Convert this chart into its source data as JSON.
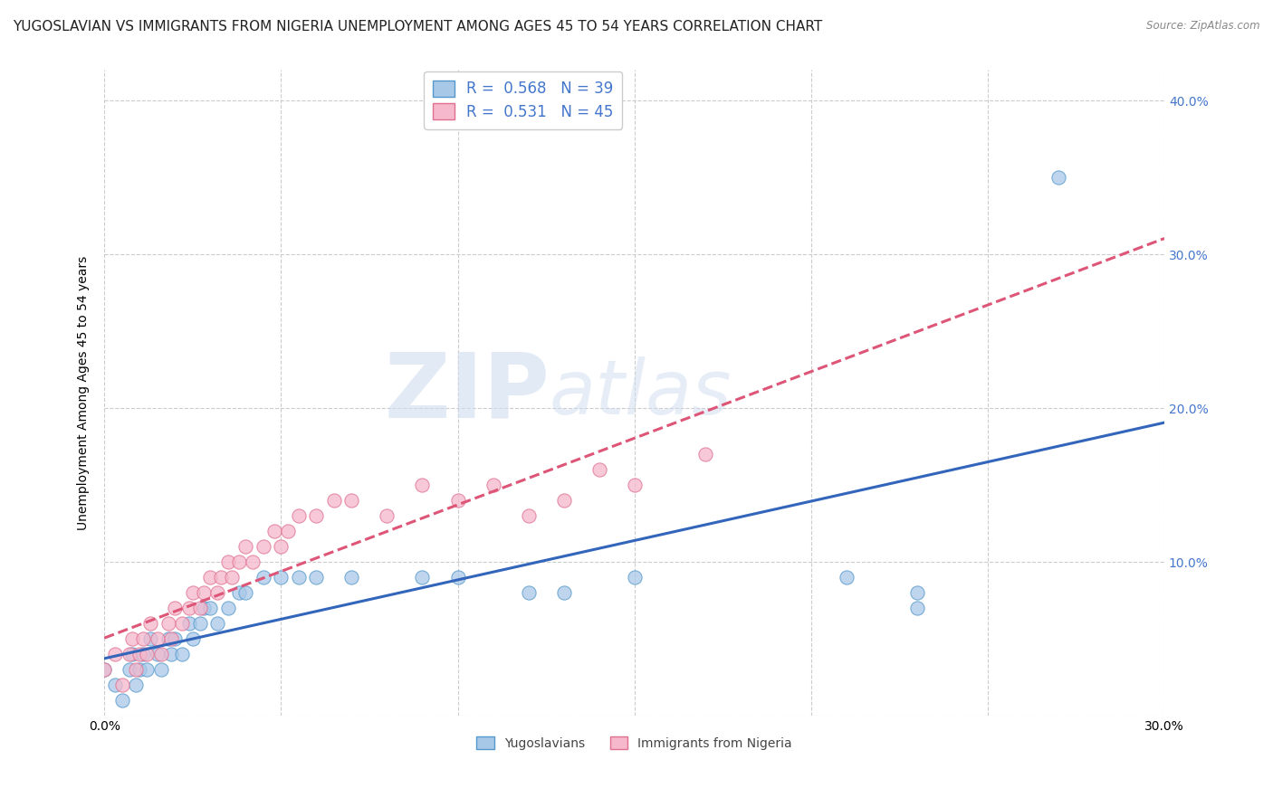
{
  "title": "YUGOSLAVIAN VS IMMIGRANTS FROM NIGERIA UNEMPLOYMENT AMONG AGES 45 TO 54 YEARS CORRELATION CHART",
  "source": "Source: ZipAtlas.com",
  "ylabel": "Unemployment Among Ages 45 to 54 years",
  "xlim": [
    0.0,
    0.3
  ],
  "ylim": [
    0.0,
    0.42
  ],
  "xticks": [
    0.0,
    0.05,
    0.1,
    0.15,
    0.2,
    0.25,
    0.3
  ],
  "yticks": [
    0.0,
    0.1,
    0.2,
    0.3,
    0.4
  ],
  "series": [
    {
      "name": "Yugoslavians",
      "R": 0.568,
      "N": 39,
      "scatter_color": "#a8c8e8",
      "edge_color": "#5599cc",
      "line_color": "#3366bb",
      "line_style": "solid",
      "x": [
        0.0,
        0.003,
        0.005,
        0.007,
        0.008,
        0.009,
        0.01,
        0.011,
        0.012,
        0.013,
        0.015,
        0.016,
        0.018,
        0.019,
        0.02,
        0.022,
        0.024,
        0.025,
        0.027,
        0.028,
        0.03,
        0.032,
        0.035,
        0.038,
        0.04,
        0.045,
        0.05,
        0.055,
        0.06,
        0.07,
        0.09,
        0.1,
        0.12,
        0.13,
        0.15,
        0.21,
        0.23,
        0.23,
        0.27
      ],
      "y": [
        0.03,
        0.02,
        0.01,
        0.03,
        0.04,
        0.02,
        0.03,
        0.04,
        0.03,
        0.05,
        0.04,
        0.03,
        0.05,
        0.04,
        0.05,
        0.04,
        0.06,
        0.05,
        0.06,
        0.07,
        0.07,
        0.06,
        0.07,
        0.08,
        0.08,
        0.09,
        0.09,
        0.09,
        0.09,
        0.09,
        0.09,
        0.09,
        0.08,
        0.08,
        0.09,
        0.09,
        0.07,
        0.08,
        0.35
      ]
    },
    {
      "name": "Immigrants from Nigeria",
      "R": 0.531,
      "N": 45,
      "scatter_color": "#f5b8cc",
      "edge_color": "#e07090",
      "line_color": "#dd5577",
      "line_style": "dashed",
      "x": [
        0.0,
        0.003,
        0.005,
        0.007,
        0.008,
        0.009,
        0.01,
        0.011,
        0.012,
        0.013,
        0.015,
        0.016,
        0.018,
        0.019,
        0.02,
        0.022,
        0.024,
        0.025,
        0.027,
        0.028,
        0.03,
        0.032,
        0.033,
        0.035,
        0.036,
        0.038,
        0.04,
        0.042,
        0.045,
        0.048,
        0.05,
        0.052,
        0.055,
        0.06,
        0.065,
        0.07,
        0.08,
        0.09,
        0.1,
        0.11,
        0.12,
        0.13,
        0.14,
        0.15,
        0.17
      ],
      "y": [
        0.03,
        0.04,
        0.02,
        0.04,
        0.05,
        0.03,
        0.04,
        0.05,
        0.04,
        0.06,
        0.05,
        0.04,
        0.06,
        0.05,
        0.07,
        0.06,
        0.07,
        0.08,
        0.07,
        0.08,
        0.09,
        0.08,
        0.09,
        0.1,
        0.09,
        0.1,
        0.11,
        0.1,
        0.11,
        0.12,
        0.11,
        0.12,
        0.13,
        0.13,
        0.14,
        0.14,
        0.13,
        0.15,
        0.14,
        0.15,
        0.13,
        0.14,
        0.16,
        0.15,
        0.17
      ]
    }
  ],
  "background_color": "#ffffff",
  "grid_color": "#cccccc",
  "title_fontsize": 11,
  "axis_label_fontsize": 10,
  "tick_fontsize": 10,
  "legend_fontsize": 12,
  "right_tick_color": "#4477cc"
}
